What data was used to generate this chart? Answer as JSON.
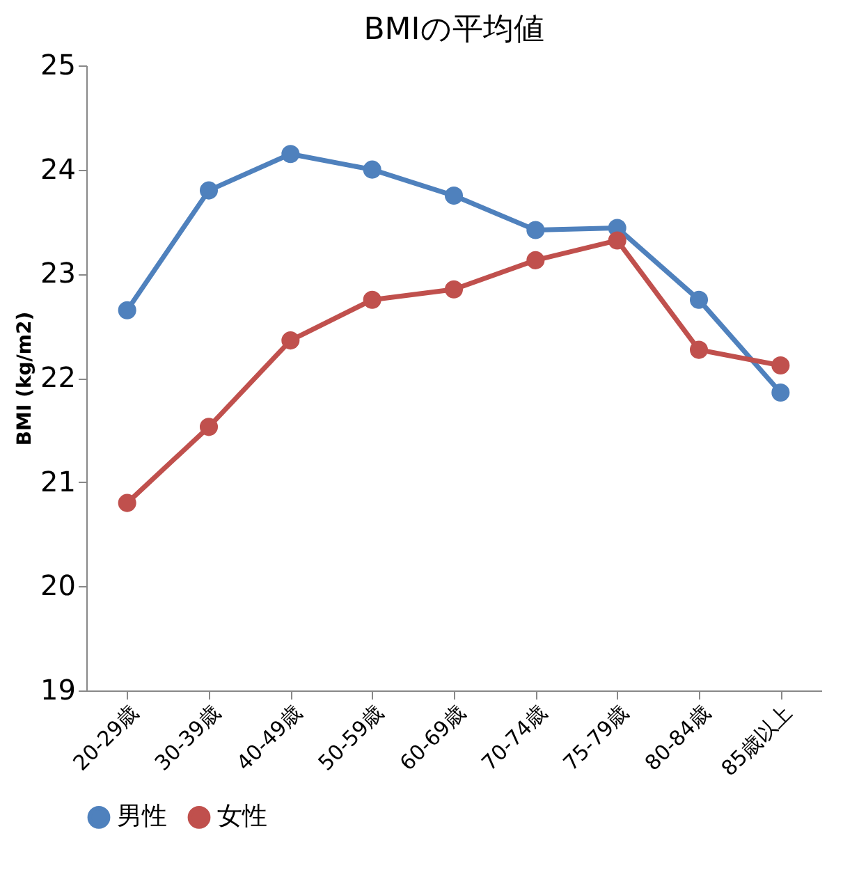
{
  "chart_data": {
    "type": "line",
    "title": "BMIの平均値",
    "ylabel": "BMI  (kg/m2)",
    "categories": [
      "20-29歳",
      "30-39歳",
      "40-49歳",
      "50-59歳",
      "60-69歳",
      "70-74歳",
      "75-79歳",
      "80-84歳",
      "85歳以上"
    ],
    "series": [
      {
        "name": "男性",
        "color": "#4f81bd",
        "values": [
          22.65,
          23.8,
          24.15,
          24.0,
          23.75,
          23.42,
          23.44,
          22.75,
          21.86
        ]
      },
      {
        "name": "女性",
        "color": "#c0504d",
        "values": [
          20.8,
          21.53,
          22.36,
          22.75,
          22.85,
          23.13,
          23.32,
          22.27,
          22.12
        ]
      }
    ],
    "ylim": [
      19,
      25
    ],
    "yticks": [
      19,
      20,
      21,
      22,
      23,
      24,
      25
    ],
    "grid": false,
    "legend": "bottom",
    "marker": "circle",
    "line_style": "solid"
  }
}
